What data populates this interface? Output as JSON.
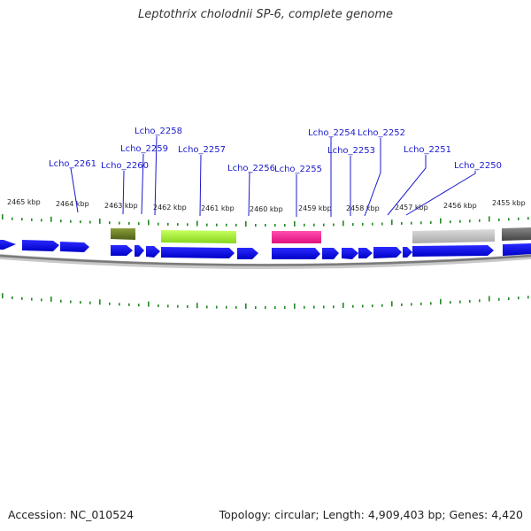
{
  "title": "Leptothrix cholodnii SP-6, complete genome",
  "footer": {
    "accession": "Accession: NC_010524",
    "stats": "Topology: circular; Length: 4,909,403 bp; Genes: 4,420"
  },
  "colors": {
    "gene_arrow": "#0000dd",
    "gene_label": "#1a1acc",
    "tick": "#228822",
    "backbone": "#888888"
  },
  "kbp_labels": [
    "2465 kbp",
    "2464 kbp",
    "2463 kbp",
    "2462 kbp",
    "2461 kbp",
    "2460 kbp",
    "2459 kbp",
    "2458 kbp",
    "2457 kbp",
    "2456 kbp",
    "2455 kbp"
  ],
  "gene_labels": [
    "Lcho_2261",
    "Lcho_2260",
    "Lcho_2259",
    "Lcho_2258",
    "Lcho_2257",
    "Lcho_2256",
    "Lcho_2255",
    "Lcho_2254",
    "Lcho_2253",
    "Lcho_2252",
    "Lcho_2251",
    "Lcho_2250"
  ]
}
